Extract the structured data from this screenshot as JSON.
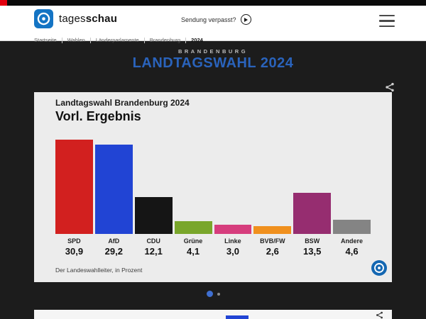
{
  "topbar": {
    "accent_color": "#e3000f"
  },
  "header": {
    "brand_regular": "tages",
    "brand_bold": "schau",
    "missed_label": "Sendung verpasst?"
  },
  "icons": {
    "brand": "tagesschau-logo",
    "play": "play-circle-icon",
    "menu": "hamburger-menu-icon",
    "share": "share-icon"
  },
  "breadcrumb": {
    "items": [
      "Startseite",
      "Wahlen",
      "Länderparlamente",
      "Brandenburg",
      "2024"
    ]
  },
  "page": {
    "kicker": "BRANDENBURG",
    "title": "LANDTAGSWAHL 2024",
    "title_color": "#2a63bb"
  },
  "carousel": {
    "dot_count": 2,
    "active_dot": 0,
    "active_color": "#3f6fd1"
  },
  "chart_data": {
    "type": "bar",
    "title": "Landtagswahl Brandenburg 2024",
    "subtitle": "Vorl. Ergebnis",
    "source_note": "Der Landeswahlleiter, in Prozent",
    "unit": "Prozent",
    "categories": [
      "SPD",
      "AfD",
      "CDU",
      "Grüne",
      "Linke",
      "BVB/FW",
      "BSW",
      "Andere"
    ],
    "values": [
      30.9,
      29.2,
      12.1,
      4.1,
      3.0,
      2.6,
      13.5,
      4.6
    ],
    "display_values": [
      "30,9",
      "29,2",
      "12,1",
      "4,1",
      "3,0",
      "2,6",
      "13,5",
      "4,6"
    ],
    "colors": [
      "#d2201f",
      "#2144d4",
      "#151515",
      "#79a62b",
      "#d63d7d",
      "#f0901e",
      "#962d70",
      "#848484"
    ],
    "ylim": [
      0,
      31
    ],
    "grid": false,
    "legend": false
  },
  "next_card": {
    "fragment_color": "#2144d4"
  }
}
